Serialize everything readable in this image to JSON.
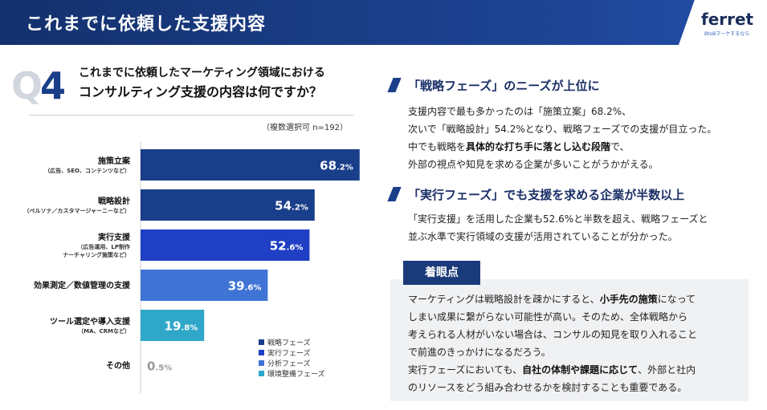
{
  "header": {
    "title": "これまでに依頼した支援内容",
    "logo": "ferret",
    "logo_tag": "BtoBマーケするなら"
  },
  "question": {
    "q": "Q",
    "num": "4",
    "line1": "これまでに依頼したマーケティング領域における",
    "line2": "コンサルティング支援の内容は何ですか？",
    "note": "（複数選択可 n=192）"
  },
  "chart_data": {
    "type": "bar",
    "orientation": "horizontal",
    "xlim": [
      0,
      100
    ],
    "categories": [
      {
        "label": "施策立案",
        "sub": [
          "（広告、SEO、コンテンツなど）"
        ],
        "value": 68.2,
        "int": "68",
        "dec": ".2%",
        "phase": "戦略フェーズ"
      },
      {
        "label": "戦略設計",
        "sub": [
          "（ペルソナ／カスタマージャーニーなど）"
        ],
        "value": 54.2,
        "int": "54",
        "dec": ".2%",
        "phase": "戦略フェーズ"
      },
      {
        "label": "実行支援",
        "sub": [
          "（広告運用、LP制作",
          "ナーチャリング施策など）"
        ],
        "value": 52.6,
        "int": "52",
        "dec": ".6%",
        "phase": "実行フェーズ"
      },
      {
        "label": "効果測定／数値管理の支援",
        "sub": [],
        "value": 39.6,
        "int": "39",
        "dec": ".6%",
        "phase": "分析フェーズ"
      },
      {
        "label": "ツール選定や導入支援",
        "sub": [
          "（MA、CRMなど）"
        ],
        "value": 19.8,
        "int": "19",
        "dec": ".8%",
        "phase": "環境整備フェーズ"
      },
      {
        "label": "その他",
        "sub": [],
        "value": 0.5,
        "int": "0",
        "dec": ".5%",
        "phase": ""
      }
    ],
    "legend": [
      {
        "name": "戦略フェーズ",
        "color": "#1a3f8a"
      },
      {
        "name": "実行フェーズ",
        "color": "#1f3fc4"
      },
      {
        "name": "分析フェーズ",
        "color": "#3f74d4"
      },
      {
        "name": "環境整備フェーズ",
        "color": "#2fa7c9"
      }
    ],
    "legend_placement": "bottom-right",
    "grid": false
  },
  "section1": {
    "title": "「戦略フェーズ」のニーズが上位に",
    "lines": [
      {
        "pre": "支援内容で最も多かったのは「施策立案」68.2%、",
        "bold": "",
        "post": ""
      },
      {
        "pre": "次いで「戦略設計」54.2%となり、戦略フェーズでの支援が目立った。",
        "bold": "",
        "post": ""
      },
      {
        "pre": "中でも戦略を",
        "bold": "具体的な打ち手に落とし込む段階",
        "post": "で、"
      },
      {
        "pre": "外部の視点や知見を求める企業が多いことがうかがえる。",
        "bold": "",
        "post": ""
      }
    ]
  },
  "section2": {
    "title": "「実行フェーズ」でも支援を求める企業が半数以上",
    "lines": [
      {
        "pre": "「実行支援」を活用した企業も52.6%と半数を超え、戦略フェーズと",
        "bold": "",
        "post": ""
      },
      {
        "pre": "並ぶ水準で実行領域の支援が活用されていることが分かった。",
        "bold": "",
        "post": ""
      }
    ]
  },
  "point": {
    "badge": "着眼点",
    "lines": [
      {
        "pre": "マーケティングは戦略設計を疎かにすると、",
        "bold": "小手先の施策",
        "post": "になって"
      },
      {
        "pre": "しまい成果に繋がらない可能性が高い。そのため、全体戦略から",
        "bold": "",
        "post": ""
      },
      {
        "pre": "考えられる人材がいない場合は、コンサルの知見を取り入れること",
        "bold": "",
        "post": ""
      },
      {
        "pre": "で前進のきっかけになるだろう。",
        "bold": "",
        "post": ""
      },
      {
        "pre": "実行フェーズにおいても、",
        "bold": "自社の体制や課題に応じて",
        "post": "、外部と社内"
      },
      {
        "pre": "のリソースをどう組み合わせるかを検討することも重要である。",
        "bold": "",
        "post": ""
      }
    ]
  }
}
